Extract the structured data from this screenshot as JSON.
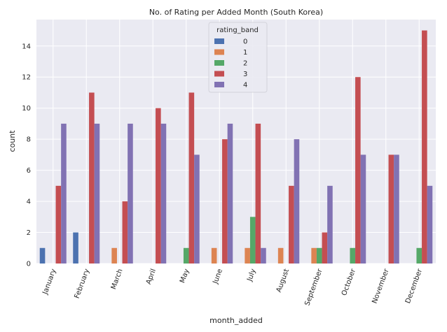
{
  "chart_data": {
    "type": "bar",
    "title": "No. of Rating per Added Month (South Korea)",
    "xlabel": "month_added",
    "ylabel": "count",
    "ylim": [
      0,
      15.7
    ],
    "yticks": [
      "0",
      "2",
      "4",
      "6",
      "8",
      "10",
      "12",
      "14"
    ],
    "grid": true,
    "legend_title": "rating_band",
    "legend_position": "top-center",
    "categories": [
      "January",
      "February",
      "March",
      "April",
      "May",
      "June",
      "July",
      "August",
      "September",
      "October",
      "November",
      "December"
    ],
    "series": [
      {
        "name": "0",
        "color": "#4c72b0",
        "values": [
          1,
          2,
          0,
          0,
          0,
          0,
          0,
          0,
          0,
          0,
          0,
          0
        ]
      },
      {
        "name": "1",
        "color": "#dd8452",
        "values": [
          0,
          0,
          1,
          0,
          0,
          1,
          1,
          1,
          1,
          0,
          0,
          0
        ]
      },
      {
        "name": "2",
        "color": "#55a868",
        "values": [
          0,
          0,
          0,
          0,
          1,
          0,
          3,
          0,
          1,
          1,
          0,
          1
        ]
      },
      {
        "name": "3",
        "color": "#c44e52",
        "values": [
          5,
          11,
          4,
          10,
          11,
          8,
          9,
          5,
          2,
          12,
          7,
          15
        ]
      },
      {
        "name": "4",
        "color": "#8172b3",
        "values": [
          9,
          9,
          9,
          9,
          7,
          9,
          1,
          8,
          5,
          7,
          7,
          5
        ]
      }
    ]
  }
}
